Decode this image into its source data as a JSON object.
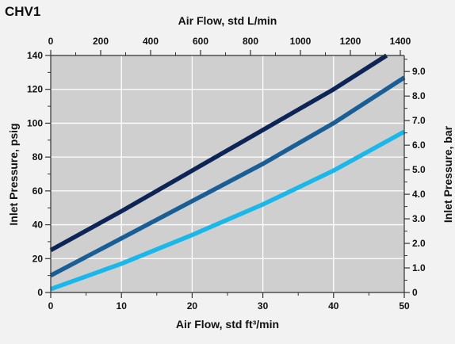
{
  "chart_data": {
    "type": "line",
    "title": "CHV1",
    "xlabel": "Air Flow, std ft³/min",
    "x2label": "Air Flow, std L/min",
    "ylabel": "Inlet Pressure, psig",
    "y2label": "Inlet Pressure, bar",
    "xlim": [
      0,
      50
    ],
    "x2lim": [
      0,
      1415.84
    ],
    "ylim": [
      0,
      140
    ],
    "y2lim": [
      0,
      9.6527
    ],
    "x_ticks": [
      "0",
      "10",
      "20",
      "30",
      "40",
      "50"
    ],
    "x2_ticks": [
      "0",
      "200",
      "400",
      "600",
      "800",
      "1000",
      "1200",
      "1400"
    ],
    "y_ticks": [
      "0",
      "20",
      "40",
      "60",
      "80",
      "100",
      "120",
      "140"
    ],
    "y2_ticks": [
      "0",
      "1.0",
      "2.0",
      "3.0",
      "4.0",
      "5.0",
      "6.0",
      "7.0",
      "8.0",
      "9.0"
    ],
    "grid": true,
    "series": [
      {
        "color": "#0c2456",
        "points": [
          [
            0,
            25
          ],
          [
            10,
            48
          ],
          [
            20,
            72
          ],
          [
            30,
            96
          ],
          [
            40,
            120
          ],
          [
            47.5,
            140
          ]
        ]
      },
      {
        "color": "#1a5e96",
        "points": [
          [
            0,
            10
          ],
          [
            10,
            32
          ],
          [
            20,
            54
          ],
          [
            30,
            76
          ],
          [
            40,
            100
          ],
          [
            50,
            127
          ]
        ]
      },
      {
        "color": "#19b7ea",
        "points": [
          [
            0,
            2
          ],
          [
            10,
            17
          ],
          [
            20,
            34
          ],
          [
            30,
            52
          ],
          [
            40,
            72
          ],
          [
            50,
            95
          ]
        ]
      }
    ]
  }
}
